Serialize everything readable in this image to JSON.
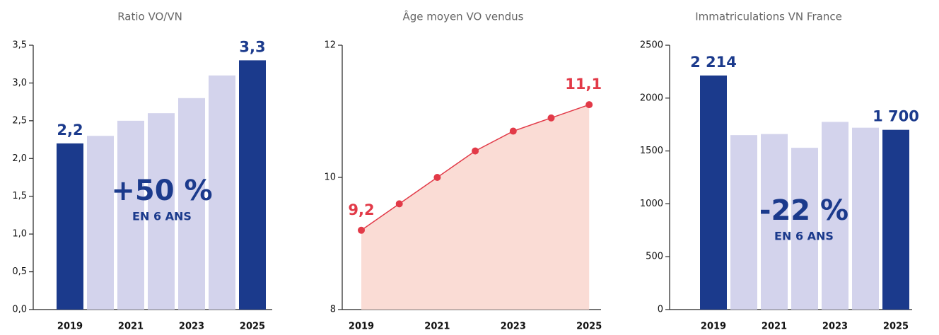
{
  "chart_data": [
    {
      "type": "bar",
      "title": "Ratio VO/VN",
      "categories": [
        "2019",
        null,
        "2021",
        null,
        "2023",
        null,
        "2025"
      ],
      "values": [
        2.2,
        2.3,
        2.5,
        2.6,
        2.8,
        3.1,
        3.3
      ],
      "value_labels": [
        "2,2",
        null,
        null,
        null,
        null,
        null,
        "3,3"
      ],
      "colors": [
        "#1b3a8c",
        "#d3d3ec",
        "#d3d3ec",
        "#d3d3ec",
        "#d3d3ec",
        "#d3d3ec",
        "#1b3a8c"
      ],
      "ylim": [
        0,
        3.5
      ],
      "yticks": [
        {
          "value": 0,
          "label": "0,0"
        },
        {
          "value": 0.5,
          "label": "0,5"
        },
        {
          "value": 1,
          "label": "1,0"
        },
        {
          "value": 1.5,
          "label": "1,5"
        },
        {
          "value": 2,
          "label": "2,0"
        },
        {
          "value": 2.5,
          "label": "2,5"
        },
        {
          "value": 3,
          "label": "3,0"
        },
        {
          "value": 3.5,
          "label": "3,5"
        }
      ],
      "annotations": [
        "+50 %",
        "EN 6 ANS"
      ]
    },
    {
      "type": "line",
      "title": "Âge moyen VO vendus",
      "categories": [
        "2019",
        null,
        "2021",
        null,
        "2023",
        null,
        "2025"
      ],
      "values": [
        9.2,
        9.6,
        10.0,
        10.4,
        10.7,
        10.9,
        11.1
      ],
      "value_labels": [
        "9,2",
        null,
        null,
        null,
        null,
        null,
        "11,1"
      ],
      "color": "#e23a48",
      "fill": "#fadcd5",
      "ylim": [
        8,
        12
      ],
      "yticks": [
        8,
        10,
        12
      ]
    },
    {
      "type": "bar",
      "title": "Immatriculations VN France",
      "categories": [
        "2019",
        null,
        "2021",
        null,
        "2023",
        null,
        "2025"
      ],
      "values": [
        2214,
        1650,
        1660,
        1530,
        1775,
        1720,
        1700
      ],
      "value_labels": [
        "2 214",
        null,
        null,
        null,
        null,
        null,
        "1 700"
      ],
      "colors": [
        "#1b3a8c",
        "#d3d3ec",
        "#d3d3ec",
        "#d3d3ec",
        "#d3d3ec",
        "#d3d3ec",
        "#1b3a8c"
      ],
      "ylim": [
        0,
        2500
      ],
      "yticks": [
        0,
        500,
        1000,
        1500,
        2000,
        2500
      ],
      "annotations": [
        "-22 %",
        "EN 6 ANS"
      ]
    }
  ]
}
